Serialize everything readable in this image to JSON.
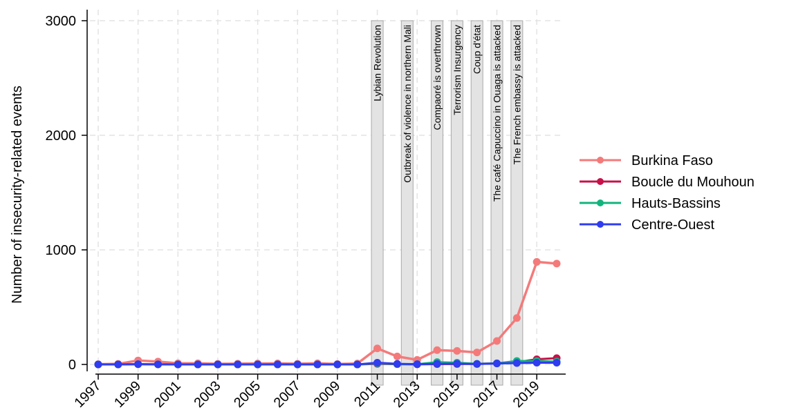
{
  "chart_data": {
    "type": "line",
    "title": "",
    "xlabel": "",
    "ylabel": "Number of insecurity-related events",
    "xlim": [
      1997,
      2020
    ],
    "ylim": [
      0,
      3000
    ],
    "grid": true,
    "legend_position": "right",
    "x": [
      1997,
      1998,
      1999,
      2000,
      2001,
      2002,
      2003,
      2004,
      2005,
      2006,
      2007,
      2008,
      2009,
      2010,
      2011,
      2012,
      2013,
      2014,
      2015,
      2016,
      2017,
      2018,
      2019,
      2020
    ],
    "x_ticks": [
      "1997",
      "1999",
      "2001",
      "2003",
      "2005",
      "2007",
      "2009",
      "2011",
      "2013",
      "2015",
      "2017",
      "2019"
    ],
    "y_ticks": [
      "0",
      "1000",
      "2000",
      "3000"
    ],
    "series": [
      {
        "name": "Burkina Faso",
        "color": "#f47a7a",
        "values": [
          2,
          5,
          35,
          25,
          10,
          10,
          5,
          7,
          8,
          9,
          6,
          10,
          4,
          8,
          140,
          70,
          40,
          125,
          118,
          105,
          205,
          405,
          895,
          880
        ]
      },
      {
        "name": "Boucle du Mouhoun",
        "color": "#c8104a",
        "values": [
          0,
          0,
          2,
          1,
          0,
          0,
          0,
          0,
          0,
          1,
          0,
          0,
          0,
          0,
          5,
          2,
          1,
          3,
          4,
          5,
          10,
          20,
          45,
          55
        ]
      },
      {
        "name": "Hauts-Bassins",
        "color": "#12b47e",
        "values": [
          0,
          0,
          2,
          1,
          0,
          0,
          0,
          0,
          0,
          0,
          0,
          0,
          0,
          0,
          10,
          3,
          2,
          20,
          15,
          5,
          10,
          30,
          30,
          25
        ]
      },
      {
        "name": "Centre-Ouest",
        "color": "#2f3cef",
        "values": [
          0,
          0,
          2,
          1,
          0,
          0,
          0,
          0,
          0,
          0,
          0,
          0,
          0,
          0,
          15,
          5,
          2,
          5,
          6,
          4,
          8,
          12,
          15,
          15
        ]
      }
    ],
    "events": [
      {
        "year": 2011,
        "label": "Lybian Revolution"
      },
      {
        "year": 2012.5,
        "label": "Outbreak of violence in northern Mali"
      },
      {
        "year": 2014,
        "label": "Compaoré is overthrown"
      },
      {
        "year": 2015,
        "label": "Terrorism Insurgency"
      },
      {
        "year": 2016,
        "label": "Coup d'état"
      },
      {
        "year": 2017,
        "label": "The café Capuccino in Ouaga is attacked"
      },
      {
        "year": 2018,
        "label": "The French embassy is attacked"
      }
    ]
  }
}
